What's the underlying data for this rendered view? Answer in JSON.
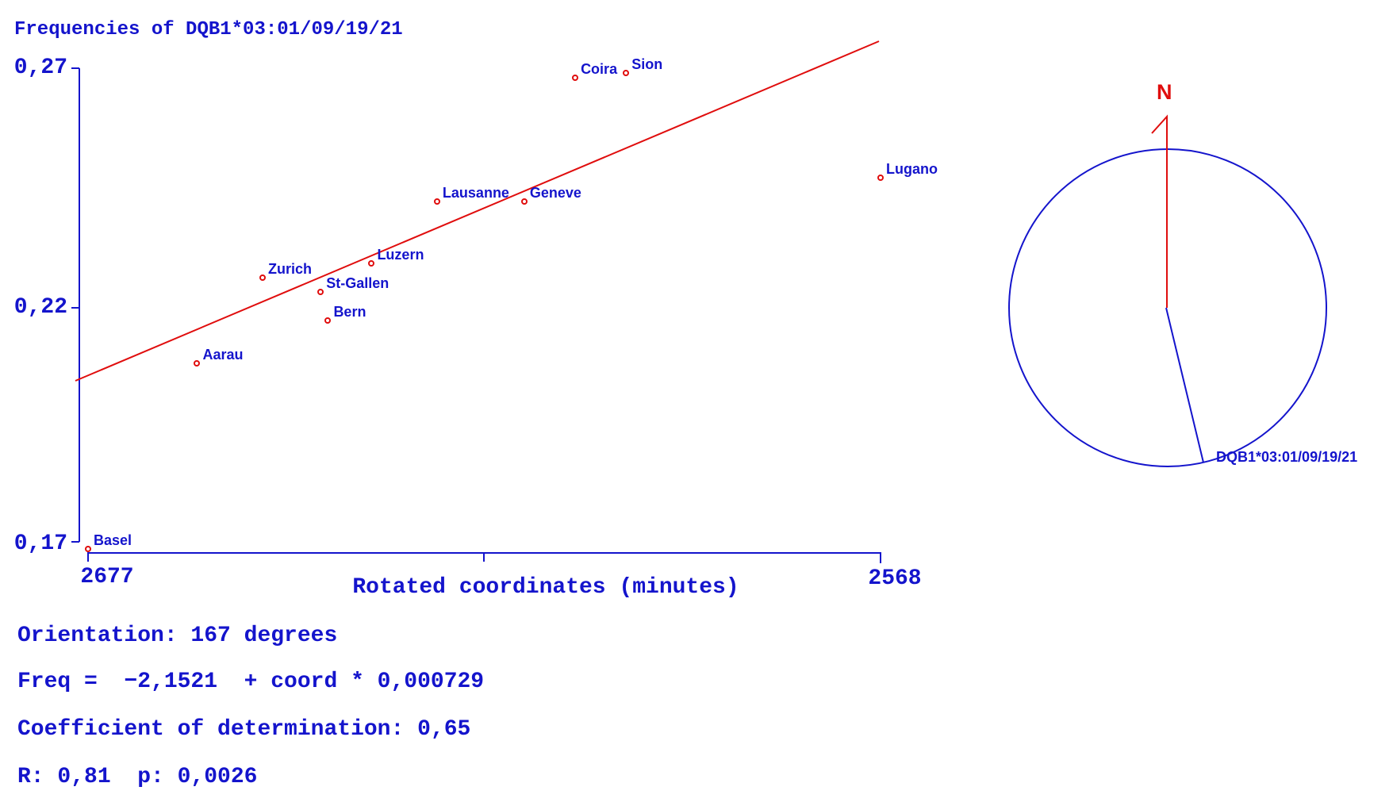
{
  "chart_data": {
    "type": "scatter",
    "title": "Frequencies of DQB1*03:01/09/19/21",
    "xlabel": "Rotated coordinates (minutes)",
    "ylabel": "",
    "x_axis_reversed": true,
    "xlim": [
      2677,
      2568
    ],
    "ylim": [
      0.17,
      0.27
    ],
    "xticks": [
      "2677",
      "2568"
    ],
    "yticks": [
      "0,27",
      "0,22",
      "0,17"
    ],
    "grid": false,
    "point_color": "#e00d0d",
    "line_color": "#e00d0d",
    "axis_color": "#1414cc",
    "points": [
      {
        "name": "Basel",
        "coord": 2677,
        "freq": 0.169
      },
      {
        "name": "Aarau",
        "coord": 2662,
        "freq": 0.208
      },
      {
        "name": "Zurich",
        "coord": 2653,
        "freq": 0.226
      },
      {
        "name": "St-Gallen",
        "coord": 2645,
        "freq": 0.223
      },
      {
        "name": "Bern",
        "coord": 2644,
        "freq": 0.217
      },
      {
        "name": "Luzern",
        "coord": 2638,
        "freq": 0.229
      },
      {
        "name": "Lausanne",
        "coord": 2629,
        "freq": 0.242
      },
      {
        "name": "Geneve",
        "coord": 2617,
        "freq": 0.242
      },
      {
        "name": "Coira",
        "coord": 2610,
        "freq": 0.268
      },
      {
        "name": "Sion",
        "coord": 2603,
        "freq": 0.269
      },
      {
        "name": "Lugano",
        "coord": 2568,
        "freq": 0.247
      }
    ],
    "regression": {
      "intercept": -2.1521,
      "slope": 0.000729
    }
  },
  "compass": {
    "north_label": "N",
    "allele_label": "DQB1*03:01/09/19/21",
    "orientation_degrees": 167
  },
  "stats": {
    "orientation": "Orientation: 167 degrees",
    "equation": "Freq =  −2,1521  + coord * 0,000729",
    "determination": "Coefficient of determination: 0,65",
    "r_p": "R: 0,81  p: 0,0026"
  }
}
